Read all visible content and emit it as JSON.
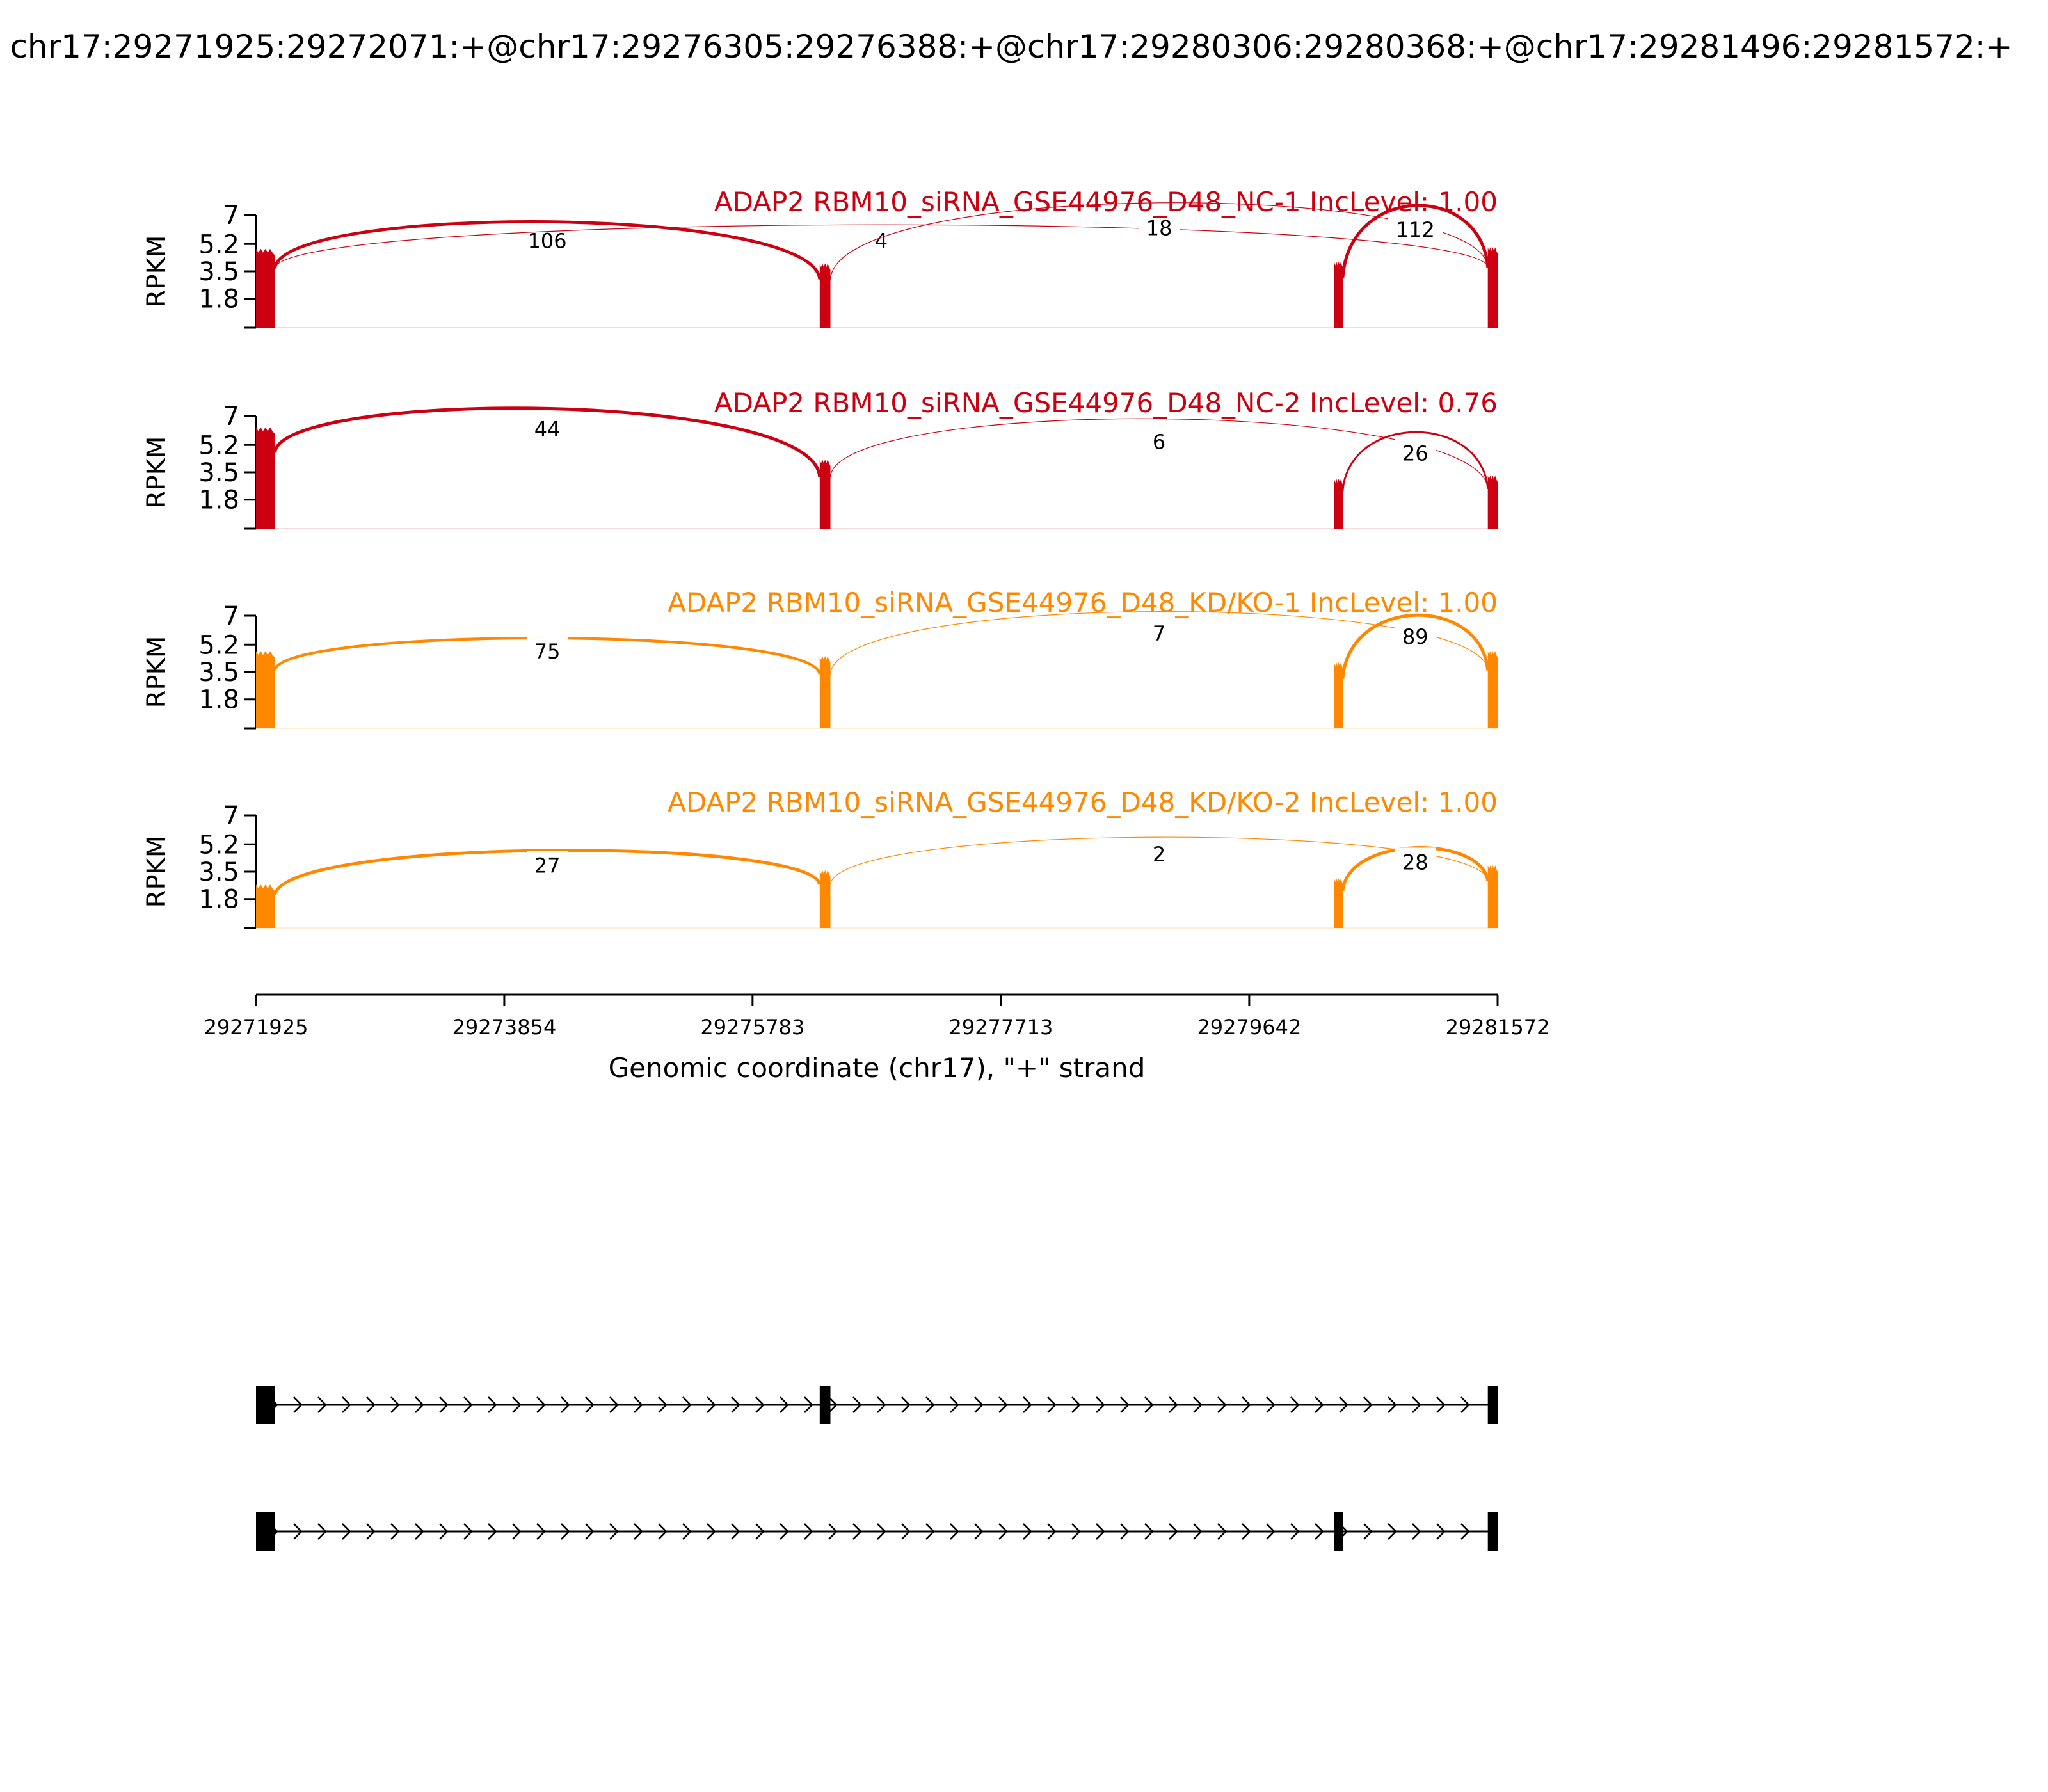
{
  "title": "chr17:29271925:29272071:+@chr17:29276305:29276388:+@chr17:29280306:29280368:+@chr17:29281496:29281572:+",
  "colors": {
    "nc": "#cc0011",
    "kd": "#ff8800",
    "axis": "#000000",
    "gene_model": "#000000"
  },
  "chart_data": {
    "type": "sashimi",
    "ylabel": "RPKM",
    "xlabel": "Genomic coordinate (chr17), \"+\" strand",
    "xlim": [
      29271925,
      29281572
    ],
    "ylim": [
      0,
      7
    ],
    "x_ticks": [
      "29271925",
      "29273854",
      "29275783",
      "29277713",
      "29279642",
      "29281572"
    ],
    "x_tick_values": [
      29271925,
      29273854,
      29275783,
      29277713,
      29279642,
      29281572
    ],
    "y_ticks": [
      "7",
      "5.2",
      "3.5",
      "1.8"
    ],
    "y_tick_values": [
      7,
      5.2,
      3.5,
      1.8
    ],
    "exons": [
      {
        "start": 29271925,
        "end": 29272071
      },
      {
        "start": 29276305,
        "end": 29276388
      },
      {
        "start": 29280306,
        "end": 29280368
      },
      {
        "start": 29281496,
        "end": 29281572
      }
    ],
    "tracks": [
      {
        "label": "ADAP2 RBM10_siRNA_GSE44976_D48_NC-1 IncLevel: 1.00",
        "group": "nc",
        "exon_heights": [
          4.9,
          4.0,
          4.1,
          5.0
        ],
        "junctions": [
          {
            "from": 29272071,
            "to": 29276305,
            "count": 106,
            "label": "106",
            "peak": 5.5
          },
          {
            "from": 29272071,
            "to": 29281496,
            "count": 4,
            "label": "4",
            "peak": 5.5
          },
          {
            "from": 29276388,
            "to": 29281496,
            "count": 18,
            "label": "18",
            "peak": 6.3
          },
          {
            "from": 29280368,
            "to": 29281496,
            "count": 112,
            "label": "112",
            "peak": 6.2
          }
        ]
      },
      {
        "label": "ADAP2 RBM10_siRNA_GSE44976_D48_NC-2 IncLevel: 0.76",
        "group": "nc",
        "exon_heights": [
          6.3,
          4.3,
          3.1,
          3.3
        ],
        "junctions": [
          {
            "from": 29272071,
            "to": 29276305,
            "count": 44,
            "label": "44",
            "peak": 6.3
          },
          {
            "from": 29276388,
            "to": 29281496,
            "count": 6,
            "label": "6",
            "peak": 5.5
          },
          {
            "from": 29280368,
            "to": 29281496,
            "count": 26,
            "label": "26",
            "peak": 4.8
          }
        ]
      },
      {
        "label": "ADAP2 RBM10_siRNA_GSE44976_D48_KD/KO-1 IncLevel: 1.00",
        "group": "kd",
        "exon_heights": [
          4.8,
          4.5,
          4.1,
          4.8
        ],
        "junctions": [
          {
            "from": 29272071,
            "to": 29276305,
            "count": 75,
            "label": "75",
            "peak": 4.9
          },
          {
            "from": 29276388,
            "to": 29281496,
            "count": 7,
            "label": "7",
            "peak": 6.0
          },
          {
            "from": 29280368,
            "to": 29281496,
            "count": 89,
            "label": "89",
            "peak": 5.8
          }
        ]
      },
      {
        "label": "ADAP2 RBM10_siRNA_GSE44976_D48_KD/KO-2 IncLevel: 1.00",
        "group": "kd",
        "exon_heights": [
          2.7,
          3.6,
          3.1,
          3.9
        ],
        "junctions": [
          {
            "from": 29272071,
            "to": 29276305,
            "count": 27,
            "label": "27",
            "peak": 4.0
          },
          {
            "from": 29276388,
            "to": 29281496,
            "count": 2,
            "label": "2",
            "peak": 4.7
          },
          {
            "from": 29280368,
            "to": 29281496,
            "count": 28,
            "label": "28",
            "peak": 4.2
          }
        ]
      }
    ],
    "isoforms": [
      {
        "exons": [
          0,
          1,
          3
        ]
      },
      {
        "exons": [
          0,
          2,
          3
        ]
      }
    ]
  }
}
